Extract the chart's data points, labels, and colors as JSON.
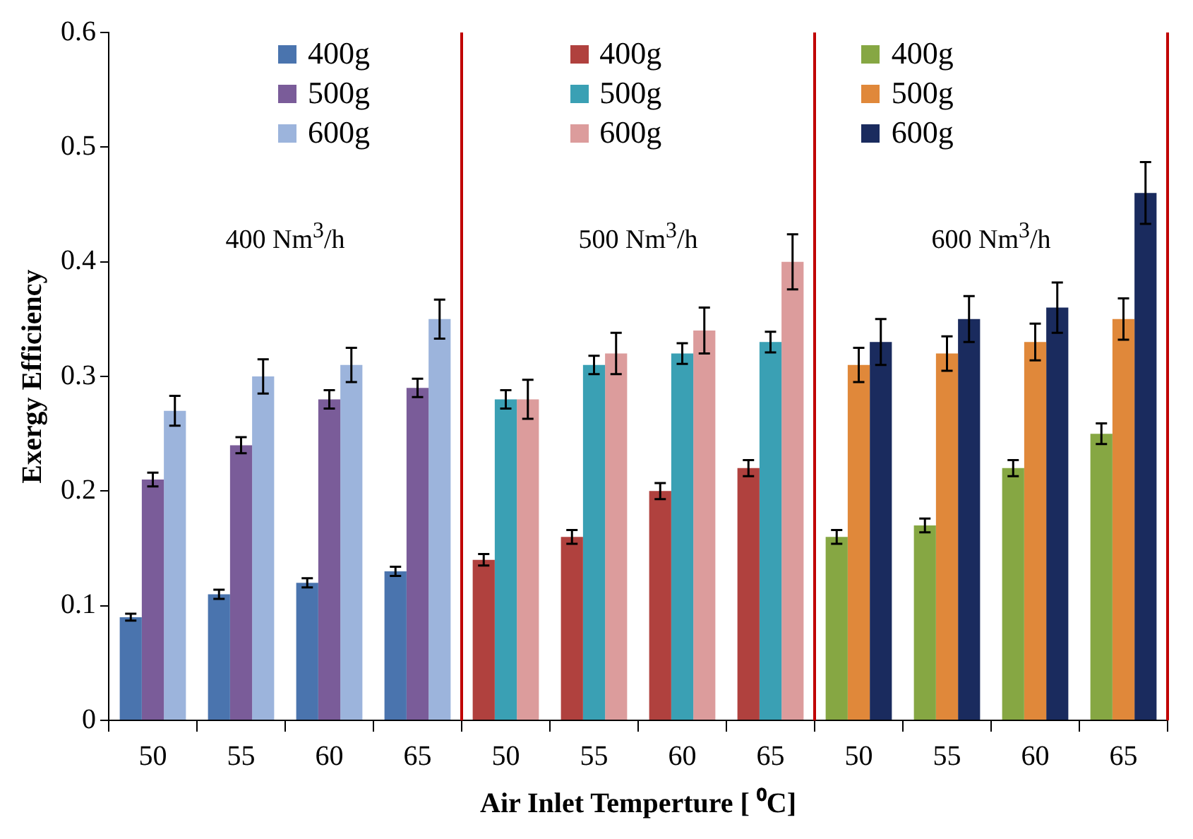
{
  "chart_data": {
    "type": "bar",
    "xlabel": "Air Inlet Temperture [ ⁰C]",
    "ylabel": "Exergy Efficiency",
    "categories": [
      "50",
      "55",
      "60",
      "65",
      "50",
      "55",
      "60",
      "65",
      "50",
      "55",
      "60",
      "65"
    ],
    "ylim": [
      0,
      0.6
    ],
    "yticks": [
      0,
      0.1,
      0.2,
      0.3,
      0.4,
      0.5,
      0.6
    ],
    "grid": false,
    "legend": "top",
    "series": [
      {
        "name": "400g",
        "color": "#4a74ae",
        "values": [
          0.09,
          0.11,
          0.12,
          0.13,
          null,
          null,
          null,
          null,
          null,
          null,
          null,
          null
        ],
        "errors": [
          0.003,
          0.004,
          0.004,
          0.004,
          null,
          null,
          null,
          null,
          null,
          null,
          null,
          null
        ]
      },
      {
        "name": "400g",
        "color": "#b0413e",
        "values": [
          null,
          null,
          null,
          null,
          0.14,
          0.16,
          0.2,
          0.22,
          null,
          null,
          null,
          null
        ],
        "errors": [
          null,
          null,
          null,
          null,
          0.005,
          0.006,
          0.007,
          0.007,
          null,
          null,
          null,
          null
        ]
      },
      {
        "name": "400g",
        "color": "#86a743",
        "values": [
          null,
          null,
          null,
          null,
          null,
          null,
          null,
          null,
          0.16,
          0.17,
          0.22,
          0.25
        ],
        "errors": [
          null,
          null,
          null,
          null,
          null,
          null,
          null,
          null,
          0.006,
          0.006,
          0.007,
          0.009
        ]
      },
      {
        "name": "500g",
        "color": "#7a5c99",
        "values": [
          0.21,
          0.24,
          0.28,
          0.29,
          null,
          null,
          null,
          null,
          null,
          null,
          null,
          null
        ],
        "errors": [
          0.006,
          0.007,
          0.008,
          0.008,
          null,
          null,
          null,
          null,
          null,
          null,
          null,
          null
        ]
      },
      {
        "name": "500g",
        "color": "#3aa0b4",
        "values": [
          null,
          null,
          null,
          null,
          0.28,
          0.31,
          0.32,
          0.33,
          null,
          null,
          null,
          null
        ],
        "errors": [
          null,
          null,
          null,
          null,
          0.008,
          0.008,
          0.009,
          0.009,
          null,
          null,
          null,
          null
        ]
      },
      {
        "name": "500g",
        "color": "#e0883a",
        "values": [
          null,
          null,
          null,
          null,
          null,
          null,
          null,
          null,
          0.31,
          0.32,
          0.33,
          0.35
        ],
        "errors": [
          null,
          null,
          null,
          null,
          null,
          null,
          null,
          null,
          0.015,
          0.015,
          0.016,
          0.018
        ]
      },
      {
        "name": "600g",
        "color": "#9cb4dc",
        "values": [
          0.27,
          0.3,
          0.31,
          0.35,
          null,
          null,
          null,
          null,
          null,
          null,
          null,
          null
        ],
        "errors": [
          0.013,
          0.015,
          0.015,
          0.017,
          null,
          null,
          null,
          null,
          null,
          null,
          null,
          null
        ]
      },
      {
        "name": "600g",
        "color": "#dc9c9c",
        "values": [
          null,
          null,
          null,
          null,
          0.28,
          0.32,
          0.34,
          0.4,
          null,
          null,
          null,
          null
        ],
        "errors": [
          null,
          null,
          null,
          null,
          0.017,
          0.018,
          0.02,
          0.024,
          null,
          null,
          null,
          null
        ]
      },
      {
        "name": "600g",
        "color": "#1a2b5e",
        "values": [
          null,
          null,
          null,
          null,
          null,
          null,
          null,
          null,
          0.33,
          0.35,
          0.36,
          0.46
        ],
        "errors": [
          null,
          null,
          null,
          null,
          null,
          null,
          null,
          null,
          0.02,
          0.02,
          0.022,
          0.027
        ]
      }
    ],
    "annotations": [
      "400 Nm$^{3}$/h",
      "500 Nm$^{3}$/h",
      "600 Nm$^{3}$/h"
    ]
  }
}
